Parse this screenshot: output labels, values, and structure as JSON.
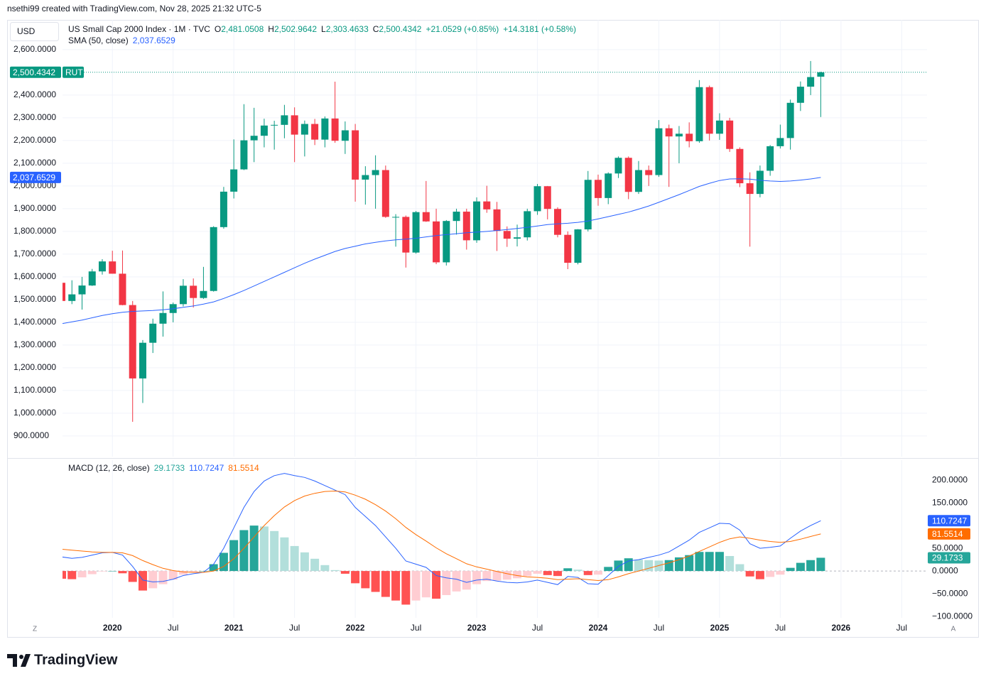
{
  "header": "nsethi99 created with TradingView.com, Nov 28, 2025 21:32 UTC-5",
  "currency": "USD",
  "footer": "TradingView",
  "scale_buttons": [
    "Z",
    "A"
  ],
  "chart_data": [
    {
      "type": "candlestick",
      "title": "US Small Cap 2000 Index · 1M · TVC",
      "symbol": "RUT",
      "ohlc_legend": [
        {
          "prefix": "O",
          "value": 2481.0508,
          "label": "2,481.0508"
        },
        {
          "prefix": "H",
          "value": 2502.9642,
          "label": "2,502.9642"
        },
        {
          "prefix": "L",
          "value": 2303.4633,
          "label": "2,303.4633"
        },
        {
          "prefix": "C",
          "value": 2500.4342,
          "label": "2,500.4342"
        }
      ],
      "change_labels": [
        "+21.0529 (+0.85%)",
        "+14.3181 (+0.58%)"
      ],
      "up_color": "#089981",
      "down_color": "#f23645",
      "x": [
        "2019-08",
        "2019-09",
        "2019-10",
        "2019-11",
        "2019-12",
        "2020-01",
        "2020-02",
        "2020-03",
        "2020-04",
        "2020-05",
        "2020-06",
        "2020-07",
        "2020-08",
        "2020-09",
        "2020-10",
        "2020-11",
        "2020-12",
        "2021-01",
        "2021-02",
        "2021-03",
        "2021-04",
        "2021-05",
        "2021-06",
        "2021-07",
        "2021-08",
        "2021-09",
        "2021-10",
        "2021-11",
        "2021-12",
        "2022-01",
        "2022-02",
        "2022-03",
        "2022-04",
        "2022-05",
        "2022-06",
        "2022-07",
        "2022-08",
        "2022-09",
        "2022-10",
        "2022-11",
        "2022-12",
        "2023-01",
        "2023-02",
        "2023-03",
        "2023-04",
        "2023-05",
        "2023-06",
        "2023-07",
        "2023-08",
        "2023-09",
        "2023-10",
        "2023-11",
        "2023-12",
        "2024-01",
        "2024-02",
        "2024-03",
        "2024-04",
        "2024-05",
        "2024-06",
        "2024-07",
        "2024-08",
        "2024-09",
        "2024-10",
        "2024-11",
        "2024-12",
        "2025-01",
        "2025-02",
        "2025-03",
        "2025-04",
        "2025-05",
        "2025-06",
        "2025-07",
        "2025-08",
        "2025-09",
        "2025-10",
        "2025-11"
      ],
      "open": [
        1574,
        1494,
        1523,
        1562,
        1624,
        1668,
        1614,
        1476,
        1153,
        1310,
        1394,
        1441,
        1480,
        1561,
        1507,
        1538,
        1819,
        1975,
        2073,
        2201,
        2221,
        2266,
        2269,
        2311,
        2226,
        2273,
        2204,
        2297,
        2199,
        2245,
        2028,
        2048,
        2070,
        1864,
        1864,
        1707,
        1885,
        1844,
        1664,
        1846,
        1887,
        1761,
        1932,
        1897,
        1802,
        1768,
        1774,
        1889,
        1999,
        1899,
        1785,
        1662,
        1809,
        2027,
        1947,
        2055,
        2124,
        1974,
        2070,
        2048,
        2254,
        2218,
        2230,
        2197,
        2435,
        2230,
        2288,
        2163,
        2012,
        1965,
        2067,
        2175,
        2211,
        2366,
        2437,
        2481.0508
      ],
      "high": [
        1574,
        1585,
        1600,
        1635,
        1678,
        1715,
        1716,
        1494,
        1322,
        1416,
        1536,
        1487,
        1590,
        1593,
        1644,
        1823,
        1996,
        2205,
        2360,
        2344,
        2296,
        2287,
        2357,
        2346,
        2288,
        2295,
        2306,
        2459,
        2284,
        2273,
        2087,
        2135,
        2090,
        1876,
        1870,
        1890,
        2022,
        1900,
        1850,
        1900,
        1900,
        1950,
        2001,
        1930,
        1822,
        1830,
        1900,
        2009,
        2000,
        1906,
        1800,
        1810,
        2066,
        2050,
        2060,
        2130,
        2130,
        2110,
        2090,
        2290,
        2270,
        2264,
        2280,
        2466,
        2442,
        2320,
        2300,
        2170,
        2060,
        2090,
        2180,
        2270,
        2380,
        2460,
        2550,
        2502.9642
      ],
      "low": [
        1456,
        1480,
        1456,
        1560,
        1610,
        1614,
        1475,
        962,
        1045,
        1265,
        1337,
        1400,
        1470,
        1465,
        1503,
        1535,
        1812,
        1945,
        2070,
        2105,
        2170,
        2160,
        2210,
        2105,
        2130,
        2180,
        2170,
        2190,
        2141,
        1931,
        1918,
        1900,
        1860,
        1733,
        1641,
        1702,
        1842,
        1656,
        1650,
        1786,
        1720,
        1750,
        1882,
        1714,
        1732,
        1734,
        1760,
        1873,
        1853,
        1774,
        1634,
        1655,
        1800,
        1913,
        1920,
        2035,
        1942,
        1965,
        2000,
        2040,
        1996,
        2100,
        2170,
        2190,
        2200,
        2203,
        2150,
        1995,
        1733,
        1950,
        2045,
        2165,
        2160,
        2330,
        2400,
        2303.4633
      ],
      "close": [
        1494,
        1523,
        1562,
        1624,
        1668,
        1614,
        1476,
        1153,
        1310,
        1394,
        1441,
        1480,
        1561,
        1507,
        1538,
        1819,
        1975,
        2073,
        2201,
        2221,
        2266,
        2269,
        2311,
        2226,
        2273,
        2204,
        2297,
        2199,
        2245,
        2028,
        2048,
        2070,
        1864,
        1864,
        1707,
        1885,
        1844,
        1664,
        1846,
        1887,
        1761,
        1932,
        1897,
        1802,
        1768,
        1774,
        1889,
        1999,
        1899,
        1785,
        1662,
        1809,
        2027,
        1947,
        2055,
        2124,
        1974,
        2070,
        2048,
        2254,
        2218,
        2230,
        2197,
        2435,
        2230,
        2288,
        2163,
        2012,
        1965,
        2067,
        2175,
        2211,
        2366,
        2437,
        2479.38,
        2500.4342
      ],
      "series": [
        {
          "name": "SMA (50, close)",
          "color": "#2962ff",
          "value_label": "2,037.6529",
          "values": [
            1394,
            1402,
            1410,
            1420,
            1430,
            1438,
            1444,
            1448,
            1450,
            1452,
            1455,
            1460,
            1466,
            1472,
            1480,
            1490,
            1505,
            1522,
            1540,
            1560,
            1580,
            1600,
            1620,
            1640,
            1660,
            1678,
            1695,
            1712,
            1725,
            1735,
            1745,
            1752,
            1758,
            1763,
            1766,
            1770,
            1776,
            1782,
            1786,
            1790,
            1794,
            1797,
            1800,
            1804,
            1808,
            1813,
            1818,
            1824,
            1830,
            1833,
            1836,
            1840,
            1846,
            1855,
            1865,
            1875,
            1885,
            1898,
            1912,
            1928,
            1945,
            1962,
            1980,
            1998,
            2012,
            2024,
            2031,
            2032,
            2030,
            2025,
            2022,
            2020,
            2022,
            2026,
            2031,
            2037.6529
          ]
        }
      ],
      "ylim": [
        809,
        2731
      ],
      "yticks": [
        {
          "value": 900,
          "label": "900.0000"
        },
        {
          "value": 1000,
          "label": "1,000.0000"
        },
        {
          "value": 1100,
          "label": "1,100.0000"
        },
        {
          "value": 1200,
          "label": "1,200.0000"
        },
        {
          "value": 1300,
          "label": "1,300.0000"
        },
        {
          "value": 1400,
          "label": "1,400.0000"
        },
        {
          "value": 1500,
          "label": "1,500.0000"
        },
        {
          "value": 1600,
          "label": "1,600.0000"
        },
        {
          "value": 1700,
          "label": "1,700.0000"
        },
        {
          "value": 1800,
          "label": "1,800.0000"
        },
        {
          "value": 1900,
          "label": "1,900.0000"
        },
        {
          "value": 2000,
          "label": "2,000.0000"
        },
        {
          "value": 2100,
          "label": "2,100.0000"
        },
        {
          "value": 2200,
          "label": "2,200.0000"
        },
        {
          "value": 2300,
          "label": "2,300.0000"
        },
        {
          "value": 2400,
          "label": "2,400.0000"
        },
        {
          "value": 2600,
          "label": "2,600.0000"
        }
      ],
      "grid": true
    },
    {
      "type": "macd",
      "title": "MACD (12, 26, close)",
      "histogram": {
        "value_label": "29.1733",
        "colors": {
          "up_rising": "#26a69a",
          "up_falling": "#b2dfdb",
          "down_falling": "#ff5252",
          "down_rising": "#ffcdd2"
        },
        "values": [
          -17,
          -18,
          -14,
          -7,
          -1,
          0,
          -5,
          -24,
          -43,
          -38,
          -29,
          -19,
          -8,
          -3,
          0,
          15,
          40,
          68,
          90,
          100,
          98,
          88,
          74,
          55,
          41,
          27,
          13,
          2,
          -6,
          -27,
          -38,
          -46,
          -57,
          -65,
          -74,
          -65,
          -58,
          -61,
          -53,
          -45,
          -41,
          -29,
          -22,
          -21,
          -19,
          -16,
          -11,
          -6,
          -9,
          -11,
          6,
          3,
          -9,
          -8,
          9,
          23,
          28,
          25,
          24,
          23,
          24,
          30,
          35,
          42,
          42,
          42,
          33,
          15,
          -12,
          -18,
          -13,
          -8,
          7,
          18,
          24,
          29.1733
        ]
      },
      "series": [
        {
          "color": "#2962ff",
          "value_label": "110.7247",
          "values": [
            31,
            28,
            30,
            35,
            40,
            41,
            35,
            10,
            -20,
            -24,
            -23,
            -18,
            -10,
            -6,
            -3,
            15,
            50,
            95,
            140,
            175,
            198,
            210,
            215,
            210,
            206,
            198,
            188,
            178,
            168,
            140,
            120,
            100,
            75,
            50,
            22,
            15,
            8,
            -10,
            -15,
            -18,
            -25,
            -20,
            -18,
            -22,
            -25,
            -26,
            -24,
            -20,
            -25,
            -30,
            -12,
            -14,
            -28,
            -29,
            -10,
            10,
            22,
            25,
            30,
            35,
            42,
            55,
            68,
            85,
            95,
            105,
            104,
            90,
            60,
            50,
            52,
            55,
            72,
            88,
            100,
            110.7247
          ]
        },
        {
          "color": "#ff6d00",
          "value_label": "81.5514",
          "values": [
            48,
            46,
            44,
            42,
            41,
            41,
            40,
            34,
            23,
            14,
            6,
            1,
            -2,
            -3,
            -3,
            0,
            10,
            27,
            50,
            75,
            100,
            122,
            141,
            155,
            165,
            171,
            175,
            176,
            174,
            167,
            158,
            146,
            132,
            115,
            96,
            80,
            66,
            51,
            38,
            27,
            16,
            9,
            4,
            -1,
            -6,
            -10,
            -13,
            -14,
            -16,
            -19,
            -18,
            -17,
            -19,
            -21,
            -19,
            -13,
            -6,
            0,
            6,
            12,
            18,
            25,
            33,
            43,
            53,
            63,
            71,
            75,
            72,
            68,
            65,
            63,
            65,
            70,
            76,
            81.5514
          ]
        }
      ],
      "ylim": [
        -103,
        244
      ],
      "yticks": [
        {
          "value": 200,
          "label": "200.0000"
        },
        {
          "value": 150,
          "label": "150.0000"
        },
        {
          "value": 50,
          "label": "50.0000"
        },
        {
          "value": 0,
          "label": "0.0000"
        },
        {
          "value": -50,
          "label": "−50.0000"
        },
        {
          "value": -100,
          "label": "−100.0000"
        }
      ],
      "xticks": [
        {
          "value": "2020-01",
          "label": "2020"
        },
        {
          "value": "2020-07",
          "label": "Jul"
        },
        {
          "value": "2021-01",
          "label": "2021"
        },
        {
          "value": "2021-07",
          "label": "Jul"
        },
        {
          "value": "2022-01",
          "label": "2022"
        },
        {
          "value": "2022-07",
          "label": "Jul"
        },
        {
          "value": "2023-01",
          "label": "2023"
        },
        {
          "value": "2023-07",
          "label": "Jul"
        },
        {
          "value": "2024-01",
          "label": "2024"
        },
        {
          "value": "2024-07",
          "label": "Jul"
        },
        {
          "value": "2025-01",
          "label": "2025"
        },
        {
          "value": "2025-07",
          "label": "Jul"
        },
        {
          "value": "2026-01",
          "label": "2026"
        },
        {
          "value": "2026-07",
          "label": "Jul"
        }
      ]
    }
  ]
}
